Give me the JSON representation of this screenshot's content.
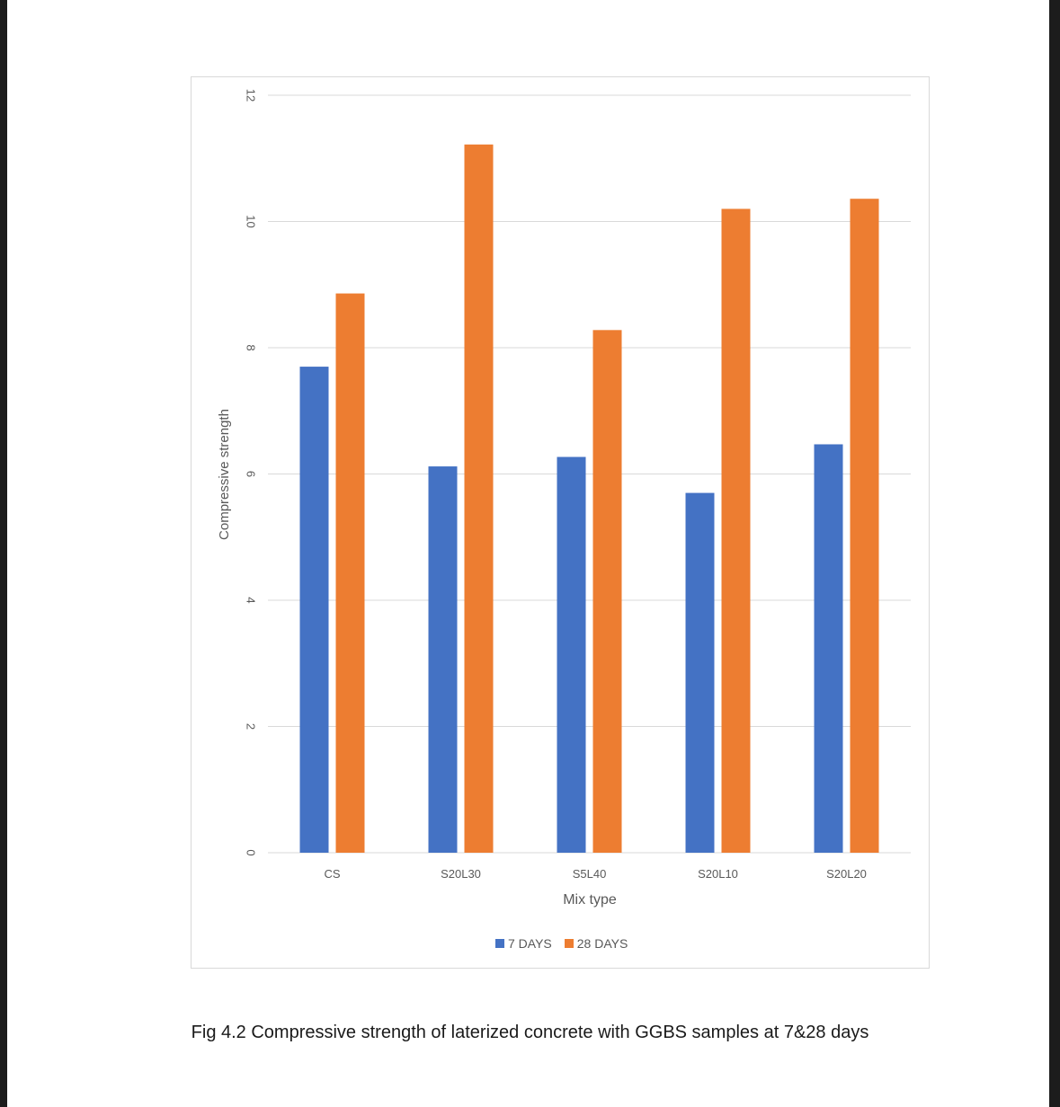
{
  "chart_data": {
    "type": "bar",
    "title": "",
    "xlabel": "Mix type",
    "ylabel": "Compressive strength",
    "ylim": [
      0,
      12
    ],
    "yticks": [
      0,
      2,
      4,
      6,
      8,
      10,
      12
    ],
    "grid": true,
    "legend_position": "bottom",
    "categories": [
      "CS",
      "S20L30",
      "S5L40",
      "S20L10",
      "S20L20"
    ],
    "series": [
      {
        "name": "7 DAYS",
        "color": "#4472C4",
        "values": [
          7.7,
          6.12,
          6.27,
          5.7,
          6.47
        ]
      },
      {
        "name": "28 DAYS",
        "color": "#ED7D31",
        "values": [
          8.86,
          11.22,
          8.28,
          10.2,
          10.36
        ]
      }
    ]
  },
  "caption": "Fig 4.2 Compressive strength of laterized concrete with GGBS samples at 7&28 days"
}
